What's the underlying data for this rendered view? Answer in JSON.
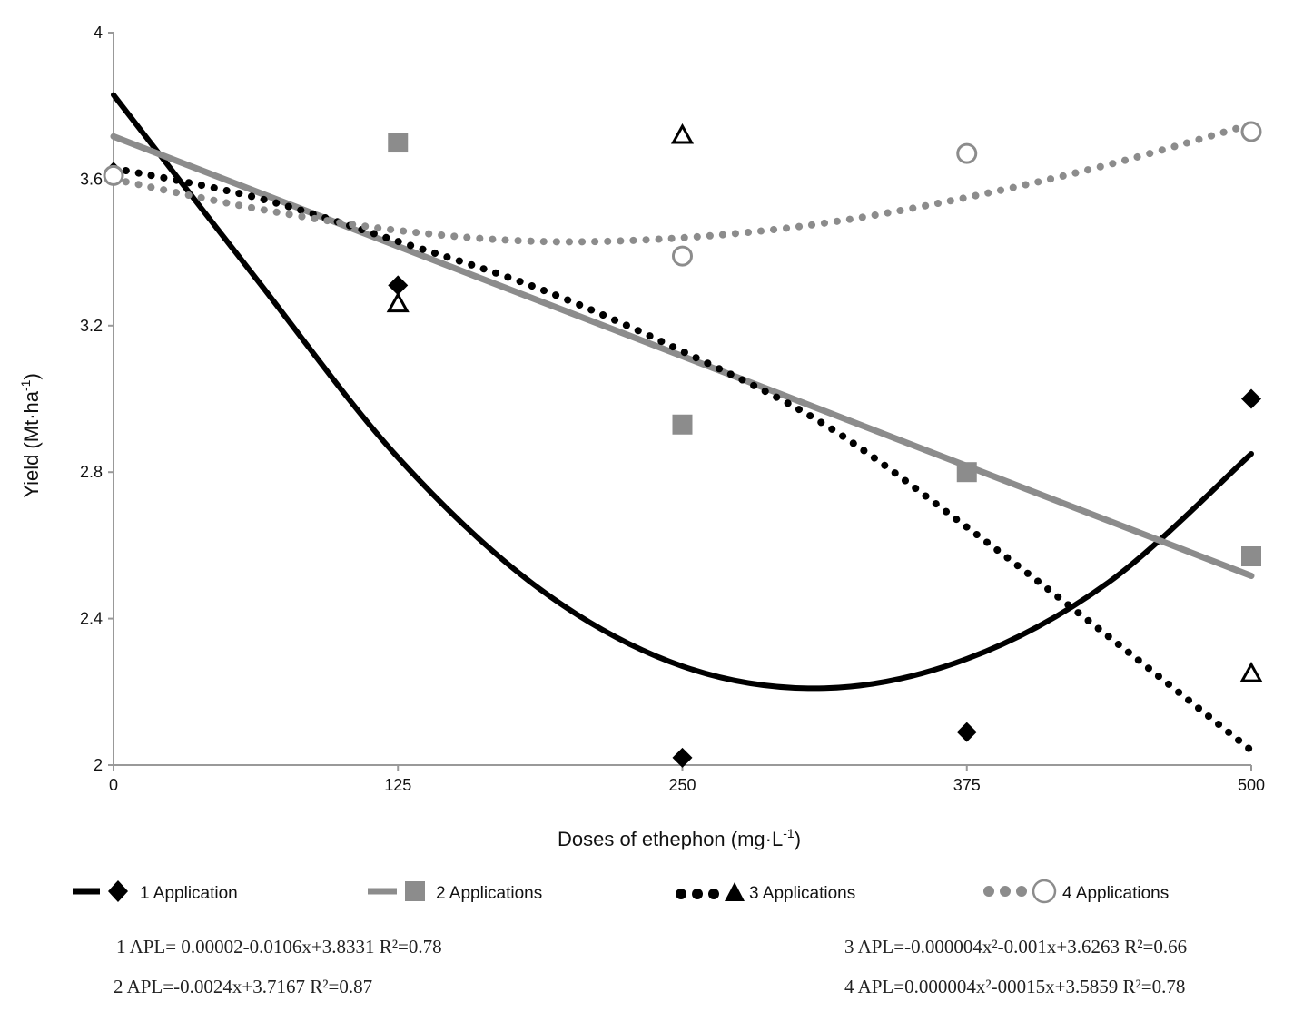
{
  "chart_data": {
    "type": "scatter",
    "xlabel_main": "Doses of ethephon (mg·L",
    "xlabel_sup": "-1",
    "xlabel_end": ")",
    "ylabel_main": "Yield (Mt·ha",
    "ylabel_sup": "-1",
    "ylabel_end": ")",
    "x_ticks": [
      0,
      125,
      250,
      375,
      500
    ],
    "y_ticks": [
      2,
      2.4,
      2.8,
      3.2,
      3.6,
      4
    ],
    "x_tick_labels": [
      "0",
      "125",
      "250",
      "375",
      "500"
    ],
    "y_tick_labels": [
      "2",
      "2.4",
      "2.8",
      "3.2",
      "3.6",
      "4"
    ],
    "xlim": [
      0,
      500
    ],
    "ylim": [
      2,
      4
    ],
    "series": [
      {
        "name": "1 Application",
        "marker": "diamond",
        "line_style": "solid",
        "color": "#000000",
        "x": [
          0,
          125,
          250,
          375,
          500
        ],
        "y": [
          3.62,
          3.31,
          2.02,
          2.09,
          3.0
        ],
        "trend": [
          [
            0,
            3.83
          ],
          [
            62.5,
            3.33
          ],
          [
            125,
            2.84
          ],
          [
            187.5,
            2.48
          ],
          [
            250,
            2.27
          ],
          [
            312.5,
            2.21
          ],
          [
            375,
            2.29
          ],
          [
            437.5,
            2.5
          ],
          [
            500,
            2.85
          ]
        ]
      },
      {
        "name": "2 Applications",
        "marker": "square",
        "line_style": "solid",
        "color": "#8c8c8c",
        "x": [
          125,
          250,
          375,
          500
        ],
        "y": [
          3.7,
          2.93,
          2.8,
          2.57
        ],
        "trend": [
          [
            0,
            3.7167
          ],
          [
            500,
            2.5167
          ]
        ]
      },
      {
        "name": "3 Applications",
        "marker": "triangle",
        "line_style": "dotted",
        "color": "#000000",
        "x": [
          125,
          250,
          500
        ],
        "y": [
          3.26,
          3.72,
          2.25
        ],
        "trend": [
          [
            0,
            3.63
          ],
          [
            62.5,
            3.55
          ],
          [
            125,
            3.43
          ],
          [
            187.5,
            3.3
          ],
          [
            250,
            3.13
          ],
          [
            312.5,
            2.93
          ],
          [
            375,
            2.65
          ],
          [
            437.5,
            2.35
          ],
          [
            500,
            2.04
          ]
        ]
      },
      {
        "name": "4 Applications",
        "marker": "circle",
        "line_style": "dotted",
        "color": "#8c8c8c",
        "x": [
          0,
          250,
          375,
          500
        ],
        "y": [
          3.61,
          3.39,
          3.67,
          3.73
        ],
        "trend": [
          [
            0,
            3.6
          ],
          [
            62.5,
            3.52
          ],
          [
            125,
            3.46
          ],
          [
            187.5,
            3.43
          ],
          [
            250,
            3.44
          ],
          [
            312.5,
            3.48
          ],
          [
            375,
            3.55
          ],
          [
            437.5,
            3.64
          ],
          [
            500,
            3.75
          ]
        ]
      }
    ]
  },
  "legend": [
    "1 Application",
    "2 Applications",
    "3 Applications",
    "4 Applications"
  ],
  "equations": {
    "eq1": "1 APL= 0.00002-0.0106x+3.8331  R²=0.78",
    "eq2": "2 APL=-0.0024x+3.7167 R²=0.87",
    "eq3": "3 APL=-0.000004x²-0.001x+3.6263  R²=0.66",
    "eq4": "4 APL=0.000004x²-00015x+3.5859  R²=0.78"
  }
}
